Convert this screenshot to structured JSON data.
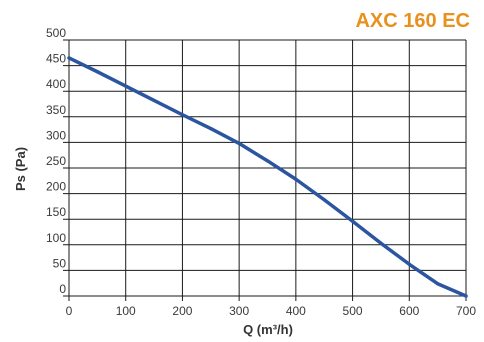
{
  "chart_data": {
    "type": "line",
    "title": {
      "prefix": "AXC ",
      "size": "160",
      "suffix": " EC",
      "color": "#e8911c"
    },
    "xlabel": "Q (m³/h)",
    "ylabel": "Ps (Pa)",
    "xlim": [
      0,
      700
    ],
    "ylim": [
      0,
      500
    ],
    "x_ticks": [
      "0",
      "100",
      "200",
      "300",
      "400",
      "500",
      "600",
      "700"
    ],
    "y_ticks": [
      "0",
      "50",
      "100",
      "150",
      "200",
      "250",
      "300",
      "350",
      "400",
      "450",
      "500"
    ],
    "grid": true,
    "series": [
      {
        "color": "#2b55a0",
        "x": [
          0,
          50,
          100,
          150,
          200,
          250,
          300,
          350,
          400,
          450,
          500,
          550,
          600,
          650,
          700
        ],
        "y": [
          465,
          438,
          410,
          382,
          354,
          327,
          298,
          264,
          228,
          188,
          146,
          103,
          62,
          24,
          0
        ]
      }
    ]
  }
}
